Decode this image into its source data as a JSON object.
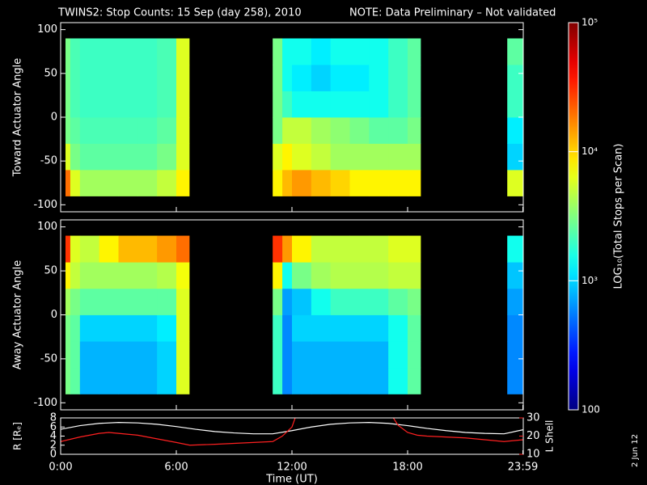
{
  "chart_data": [
    {
      "type": "heatmap",
      "title": "TWINS2: Stop Counts: 15 Sep (day 258), 2010",
      "note": "NOTE: Data Preliminary – Not validated",
      "note_color": "#ff2020",
      "ylabel": "Toward Actuator Angle",
      "ylim": [
        -108,
        108
      ],
      "yticks": [
        -100,
        -50,
        0,
        50,
        100
      ],
      "xlim": [
        0,
        24
      ],
      "x_edges": [
        0.25,
        0.5,
        1,
        2,
        3,
        4,
        5,
        6,
        6.67,
        11,
        11.5,
        12,
        13,
        14,
        15,
        16,
        17,
        18,
        18.67,
        23.17,
        24
      ],
      "y_edges": [
        -90,
        -60,
        -30,
        0,
        30,
        60,
        90
      ],
      "values": [
        [
          20000,
          6000,
          4000,
          4000,
          4000,
          4000,
          5000,
          8000,
          null,
          8000,
          12000,
          15000,
          12000,
          10000,
          8000,
          8000,
          8000,
          8000,
          null,
          6000
        ],
        [
          6000,
          3000,
          2500,
          2500,
          2500,
          2500,
          3000,
          6000,
          null,
          6000,
          8000,
          6000,
          5000,
          4000,
          4000,
          4000,
          4000,
          4000,
          null,
          1000
        ],
        [
          3000,
          2500,
          2200,
          2200,
          2200,
          2200,
          2500,
          6000,
          null,
          3000,
          5000,
          5000,
          4000,
          3500,
          3000,
          2500,
          2500,
          3000,
          null,
          1200
        ],
        [
          3000,
          2200,
          2000,
          2000,
          2000,
          2000,
          2200,
          6000,
          null,
          3000,
          2000,
          1500,
          1500,
          1500,
          1500,
          1500,
          2000,
          2500,
          null,
          2000
        ],
        [
          3000,
          2200,
          2000,
          2000,
          2000,
          2000,
          2200,
          6000,
          null,
          3000,
          1500,
          1200,
          1000,
          1200,
          1200,
          1500,
          2000,
          2500,
          null,
          2000
        ],
        [
          3000,
          2200,
          2000,
          2000,
          2000,
          2000,
          2200,
          6000,
          null,
          3000,
          1500,
          1500,
          1200,
          1500,
          1500,
          1500,
          2000,
          2500,
          null,
          2500
        ]
      ],
      "colormap": "jet",
      "zscale": "log",
      "zlim": [
        100,
        100000
      ],
      "zticks": [
        100,
        {
          "value": 1000,
          "label": "10³"
        },
        {
          "value": 10000,
          "label": "10⁴"
        },
        {
          "value": 100000,
          "label": "10⁵"
        }
      ],
      "zlabel": "LOG₁₀(Total Stops per Scan)"
    },
    {
      "type": "heatmap",
      "ylabel": "Away Actuator Angle",
      "ylim": [
        -108,
        108
      ],
      "yticks": [
        -100,
        -50,
        0,
        50,
        100
      ],
      "xlim": [
        0,
        24
      ],
      "x_edges": [
        0.25,
        0.5,
        1,
        2,
        3,
        4,
        5,
        6,
        6.67,
        11,
        11.5,
        12,
        13,
        14,
        15,
        16,
        17,
        18,
        18.67,
        23.17,
        24
      ],
      "y_edges": [
        -90,
        -60,
        -30,
        0,
        30,
        60,
        90
      ],
      "values": [
        [
          3000,
          2500,
          800,
          800,
          800,
          800,
          1000,
          6000,
          null,
          2000,
          600,
          800,
          800,
          800,
          800,
          800,
          1500,
          2500,
          null,
          600
        ],
        [
          3000,
          2500,
          800,
          800,
          800,
          800,
          1000,
          6000,
          null,
          2000,
          600,
          800,
          800,
          800,
          800,
          800,
          1500,
          2500,
          null,
          600
        ],
        [
          3000,
          2500,
          1000,
          1000,
          1000,
          1000,
          1200,
          6000,
          null,
          2000,
          600,
          1000,
          1000,
          1000,
          1000,
          1000,
          1500,
          2500,
          null,
          600
        ],
        [
          4000,
          3000,
          2500,
          2500,
          2500,
          2500,
          2500,
          6000,
          null,
          3000,
          700,
          900,
          1500,
          2000,
          2000,
          2000,
          2500,
          3000,
          null,
          700
        ],
        [
          8000,
          5000,
          4000,
          4000,
          4000,
          4000,
          4500,
          7000,
          null,
          8000,
          1500,
          3000,
          4000,
          4500,
          4500,
          4500,
          5000,
          5000,
          null,
          900
        ],
        [
          30000,
          6000,
          5000,
          8000,
          12000,
          12000,
          15000,
          20000,
          null,
          30000,
          15000,
          8000,
          5000,
          5000,
          5000,
          5000,
          6000,
          6000,
          null,
          1500
        ]
      ]
    },
    {
      "type": "line",
      "xlabel": "Time (UT)",
      "ylabel": "R [Rₑ]",
      "y2label": "L Shell",
      "xlim": [
        0,
        24
      ],
      "xticks": [
        {
          "value": 0,
          "label": "0:00"
        },
        {
          "value": 6,
          "label": "6:00"
        },
        {
          "value": 12,
          "label": "12:00"
        },
        {
          "value": 18,
          "label": "18:00"
        },
        {
          "value": 23.98,
          "label": "23:59"
        }
      ],
      "ylim": [
        0,
        8
      ],
      "yticks": [
        0,
        2,
        4,
        6,
        8
      ],
      "y2lim": [
        10,
        30
      ],
      "y2ticks": [
        10,
        20,
        30
      ],
      "y2color": "#ff2020",
      "series": [
        {
          "color": "#ffffff",
          "x": [
            0,
            1,
            2,
            3,
            4,
            5,
            6,
            7,
            8,
            9,
            10,
            11,
            12,
            13,
            14,
            15,
            16,
            17,
            18,
            19,
            20,
            21,
            22,
            23,
            24
          ],
          "values": [
            5.5,
            6.3,
            6.8,
            7.0,
            6.9,
            6.6,
            6.1,
            5.5,
            5.0,
            4.7,
            4.5,
            4.5,
            5.2,
            6.0,
            6.6,
            6.9,
            7.0,
            6.8,
            6.3,
            5.7,
            5.2,
            4.8,
            4.6,
            4.5,
            5.4
          ]
        },
        {
          "color": "#ff2020",
          "axis": "y2",
          "x": [
            0,
            1,
            2,
            2.5,
            3,
            4,
            5,
            6,
            6.7,
            8,
            9,
            10,
            11,
            11.5,
            12,
            12.2,
            14.7,
            17.2,
            17.5,
            18,
            18.5,
            19,
            20,
            21,
            22,
            23,
            24
          ],
          "values": [
            17,
            19.5,
            21.5,
            22,
            21.5,
            20.5,
            18.5,
            16.5,
            15,
            15.5,
            16,
            16.5,
            17,
            20,
            25,
            31,
            null,
            31,
            26,
            22,
            20.5,
            20,
            19.5,
            19,
            18,
            17,
            18
          ]
        }
      ]
    }
  ],
  "date_stamp": "2 Jun 12"
}
